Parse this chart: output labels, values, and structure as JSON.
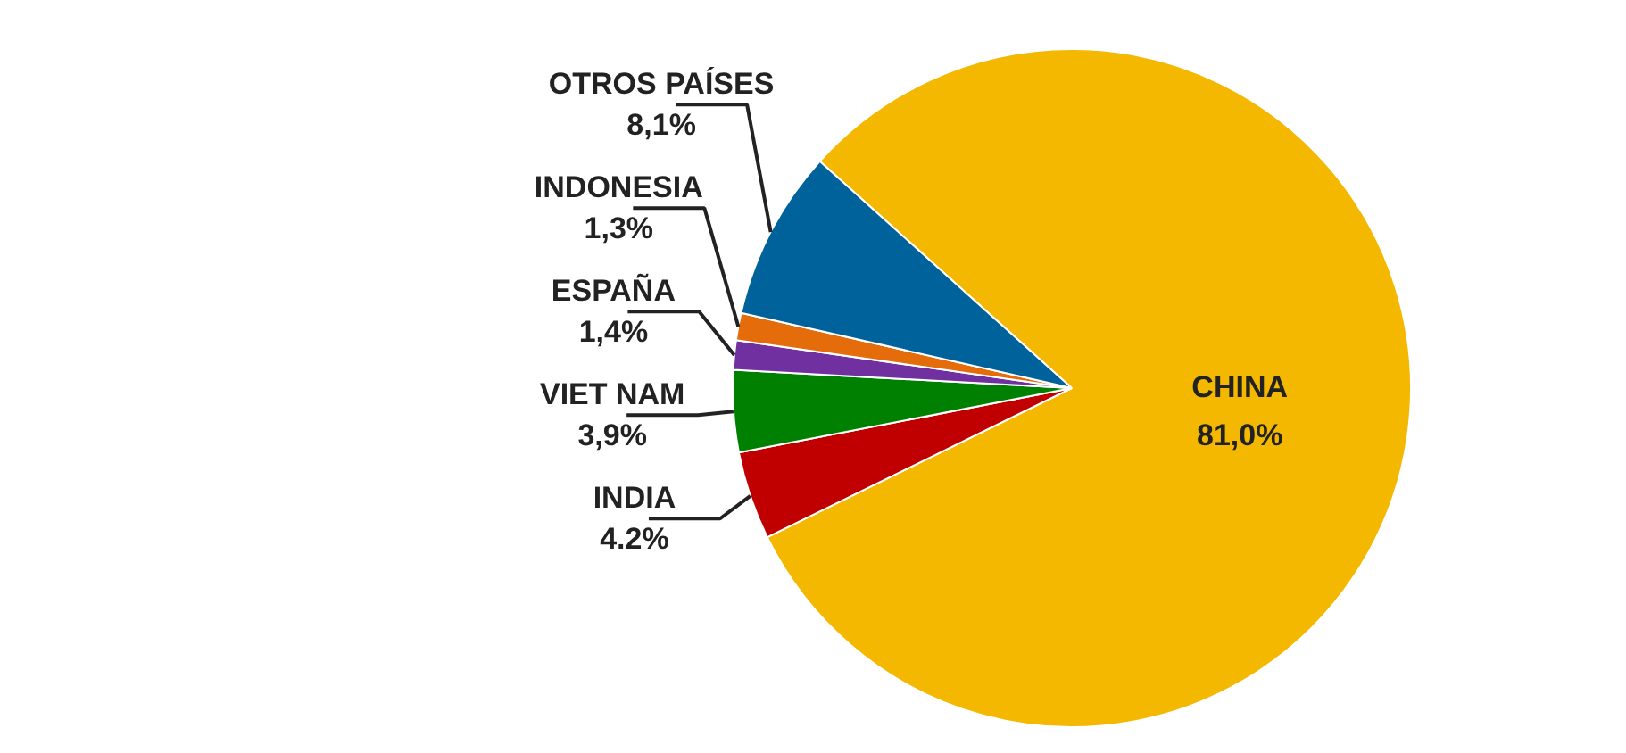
{
  "chart_data": {
    "type": "pie",
    "categories": [
      "CHINA",
      "INDIA",
      "VIET NAM",
      "ESPAÑA",
      "INDONESIA",
      "OTROS PAÍSES"
    ],
    "values": [
      81.0,
      4.2,
      3.9,
      1.4,
      1.3,
      8.1
    ],
    "value_labels": [
      "81,0%",
      "4.2%",
      "3,9%",
      "1,4%",
      "1,3%",
      "8,1%"
    ],
    "colors": [
      "#f5b800",
      "#c00000",
      "#008000",
      "#7030a0",
      "#e46c0a",
      "#00629b"
    ]
  }
}
